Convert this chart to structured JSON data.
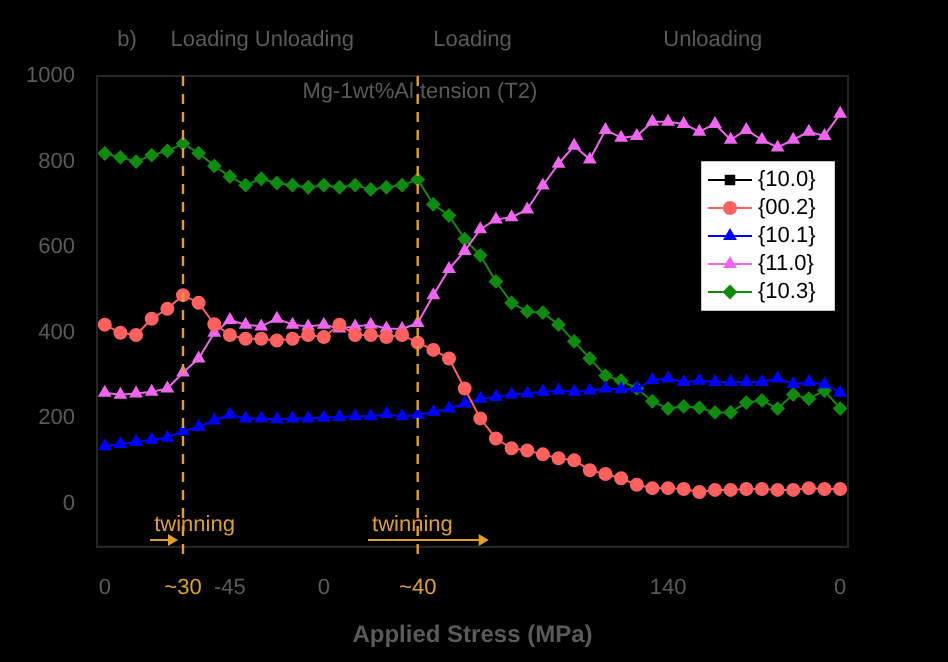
{
  "chart_data": {
    "type": "line",
    "xlabel": "Applied Stress (MPa)",
    "annotations": [
      "b)",
      "Loading Unloading",
      "Loading",
      "Unloading",
      "Mg-1wt%Al tension (T2)",
      "twinning",
      "twinning"
    ],
    "categories": [
      "0",
      null,
      null,
      null,
      null,
      "~30",
      null,
      null,
      "-45",
      null,
      null,
      null,
      null,
      null,
      "0",
      null,
      null,
      null,
      null,
      null,
      "~40",
      null,
      null,
      null,
      null,
      null,
      null,
      null,
      null,
      null,
      null,
      null,
      null,
      null,
      null,
      null,
      "140",
      null,
      null,
      null,
      null,
      null,
      null,
      null,
      null,
      null,
      null,
      "0"
    ],
    "series": [
      {
        "name": "{10.0}",
        "color": "#000000",
        "marker": "square",
        "values": [
          null,
          null,
          null,
          null,
          null,
          null,
          null,
          null,
          null,
          null,
          null,
          null,
          null,
          null,
          null,
          null,
          null,
          null,
          null,
          null,
          null,
          null,
          null,
          null,
          null,
          null,
          null,
          null,
          null,
          null,
          null,
          null,
          null,
          null,
          null,
          null,
          null,
          null,
          null,
          null,
          null,
          null,
          null,
          null,
          null,
          null,
          null,
          null
        ]
      },
      {
        "name": "{00.2}",
        "color": "#ff6060",
        "marker": "circle",
        "values": [
          419,
          400,
          395,
          433,
          456,
          488,
          470,
          420,
          395,
          386,
          386,
          382,
          386,
          395,
          390,
          419,
          395,
          395,
          390,
          395,
          377,
          360,
          340,
          270,
          200,
          153,
          130,
          125,
          116,
          107,
          102,
          79,
          70,
          60,
          45,
          37,
          37,
          35,
          28,
          33,
          33,
          35,
          35,
          33,
          33,
          37,
          35,
          35
        ]
      },
      {
        "name": "{10.1}",
        "color": "#0000ff",
        "marker": "triangle",
        "values": [
          135,
          140,
          145,
          150,
          155,
          170,
          180,
          195,
          209,
          200,
          200,
          198,
          200,
          200,
          202,
          203,
          205,
          205,
          210,
          205,
          208,
          215,
          223,
          235,
          246,
          250,
          256,
          258,
          262,
          265,
          262,
          265,
          270,
          268,
          270,
          290,
          293,
          285,
          288,
          285,
          285,
          285,
          285,
          293,
          280,
          285,
          280,
          260
        ]
      },
      {
        "name": "{11.0}",
        "color": "#ee66ee",
        "marker": "triangle",
        "values": [
          260,
          255,
          258,
          262,
          270,
          307,
          340,
          400,
          430,
          419,
          415,
          433,
          419,
          415,
          419,
          410,
          415,
          419,
          410,
          409,
          423,
          488,
          549,
          591,
          642,
          665,
          670,
          688,
          744,
          795,
          837,
          805,
          874,
          856,
          860,
          893,
          893,
          888,
          870,
          888,
          851,
          874,
          851,
          833,
          851,
          870,
          860,
          912
        ]
      },
      {
        "name": "{10.3}",
        "color": "#108a10",
        "marker": "diamond",
        "values": [
          819,
          810,
          800,
          815,
          825,
          842,
          820,
          790,
          765,
          745,
          760,
          750,
          745,
          740,
          745,
          740,
          745,
          735,
          740,
          745,
          758,
          700,
          674,
          619,
          581,
          520,
          470,
          450,
          447,
          419,
          380,
          340,
          300,
          288,
          270,
          240,
          223,
          228,
          225,
          214,
          214,
          237,
          242,
          223,
          256,
          246,
          265,
          223
        ]
      }
    ],
    "ylim": [
      -100,
      1000
    ],
    "yticks": [
      0,
      200,
      400,
      600,
      800,
      1000
    ],
    "ref_lines": [
      {
        "axis": "x",
        "value": "~30",
        "color": "#e0a030",
        "line_style": "dashed"
      },
      {
        "axis": "x",
        "value": "~40",
        "color": "#e0a030",
        "line_style": "dashed"
      }
    ],
    "legend": "top right",
    "grid": false,
    "line_style": "solid"
  }
}
